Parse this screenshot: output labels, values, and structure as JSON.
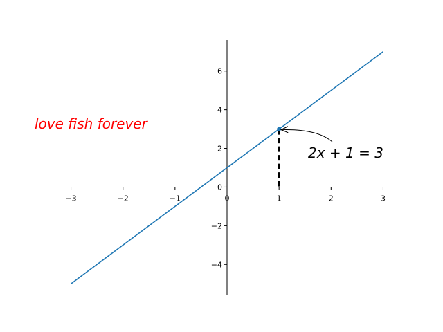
{
  "chart_data": {
    "type": "line",
    "title": "",
    "xlabel": "",
    "ylabel": "",
    "xlim": [
      -3.3,
      3.3
    ],
    "ylim": [
      -5.6,
      7.6
    ],
    "xticks": [
      -3,
      -2,
      -1,
      0,
      1,
      2,
      3
    ],
    "yticks": [
      -4,
      -2,
      0,
      2,
      4,
      6
    ],
    "xtick_labels": [
      "−3",
      "−2",
      "−1",
      "0",
      "1",
      "2",
      "3"
    ],
    "ytick_labels": [
      "−4",
      "−2",
      "0",
      "2",
      "4",
      "6"
    ],
    "spines": "centered at origin",
    "grid": false,
    "series": [
      {
        "x": [
          -3,
          3
        ],
        "y": [
          -5,
          7
        ],
        "color": "#1f77b4"
      }
    ],
    "highlight_point": {
      "x": 1,
      "y": 3,
      "color": "#1f77b4",
      "guide": "dashed vertical line to x-axis",
      "guide_color": "#000000"
    },
    "annotation": {
      "text": "2x + 1 = 3",
      "points_to": [
        1,
        3
      ],
      "arrow": "curved"
    },
    "free_text": {
      "text": "love fish forever",
      "color": "#ff0000",
      "style": "italic"
    }
  }
}
